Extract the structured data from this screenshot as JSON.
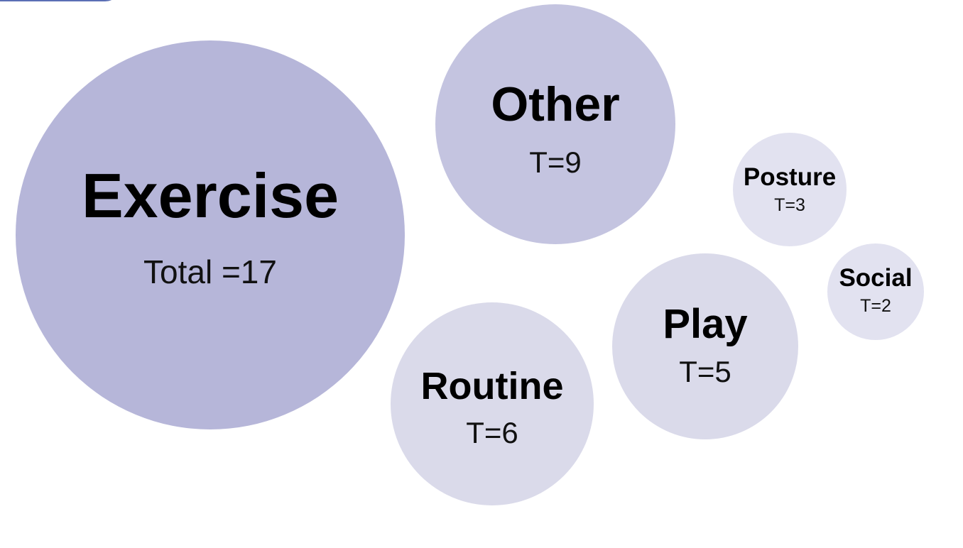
{
  "chart_data": {
    "type": "bubble",
    "bubbles": [
      {
        "category": "Exercise",
        "value": 17,
        "value_label": "Total =17",
        "color": "#b6b6d9"
      },
      {
        "category": "Other",
        "value": 9,
        "value_label": "T=9",
        "color": "#c4c4e0"
      },
      {
        "category": "Posture",
        "value": 3,
        "value_label": "T=3",
        "color": "#e2e2f0"
      },
      {
        "category": "Social",
        "value": 2,
        "value_label": "T=2",
        "color": "#e2e2f0"
      },
      {
        "category": "Play",
        "value": 5,
        "value_label": "T=5",
        "color": "#dadaea"
      },
      {
        "category": "Routine",
        "value": 6,
        "value_label": "T=6",
        "color": "#dadaea"
      }
    ],
    "accent_color": "#5b6fb5"
  }
}
